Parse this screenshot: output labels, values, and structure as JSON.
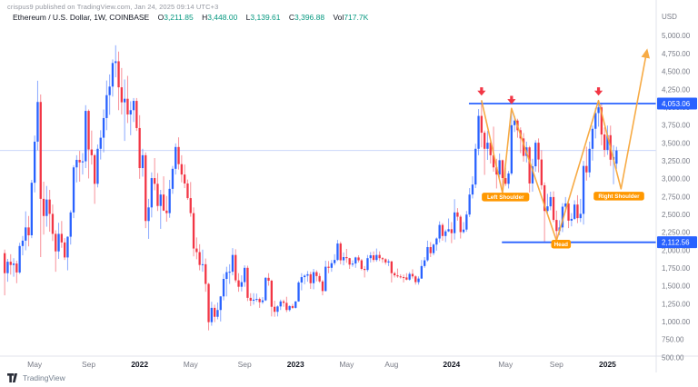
{
  "header": {
    "byline": "crispus9 published on TradingView.com, Jan 24, 2025 09:14 UTC+3"
  },
  "symbol_bar": {
    "title": "Ethereum / U.S. Dollar, 1W, COINBASE",
    "fields": [
      {
        "k": "O",
        "v": "3,211.85"
      },
      {
        "k": "H",
        "v": "3,448.00"
      },
      {
        "k": "L",
        "v": "3,139.61"
      },
      {
        "k": "C",
        "v": "3,396.88"
      },
      {
        "k": "Vol",
        "v": "717.7K"
      }
    ]
  },
  "axis": {
    "currency": "USD",
    "price_ticks": [
      5000,
      4750,
      4500,
      4250,
      4000,
      3750,
      3500,
      3250,
      3000,
      2750,
      2500,
      2250,
      2000,
      1750,
      1500,
      1250,
      1000,
      750,
      500
    ],
    "time_labels": [
      {
        "label": "May",
        "i": 10,
        "bold": false
      },
      {
        "label": "Sep",
        "i": 28,
        "bold": false
      },
      {
        "label": "2022",
        "i": 45,
        "bold": true
      },
      {
        "label": "May",
        "i": 62,
        "bold": false
      },
      {
        "label": "Sep",
        "i": 80,
        "bold": false
      },
      {
        "label": "2023",
        "i": 97,
        "bold": true
      },
      {
        "label": "May",
        "i": 114,
        "bold": false
      },
      {
        "label": "Aug",
        "i": 129,
        "bold": false
      },
      {
        "label": "2024",
        "i": 149,
        "bold": true
      },
      {
        "label": "May",
        "i": 167,
        "bold": false
      },
      {
        "label": "Sep",
        "i": 184,
        "bold": false
      },
      {
        "label": "2025",
        "i": 201,
        "bold": true
      }
    ]
  },
  "footer": {
    "logo_text": "TradingView"
  },
  "colors": {
    "up": "#2962ff",
    "down": "#f23645",
    "wick_up": "rgba(41,98,255,0.55)",
    "wick_down": "rgba(242,54,69,0.55)",
    "drawn_line_blue": "#2962ff",
    "axis_badge_blue": "#2962ff",
    "orange": "#f7a73c",
    "badge_orange": "#ff9800",
    "arrow_red": "#f23645",
    "current_price_line": "#ccd7fa",
    "axis_text": "#787b86",
    "axis_border": "#e0e3eb",
    "year_text": "#131722"
  },
  "chart_data": {
    "type": "candlestick",
    "title": "Ethereum / U.S. Dollar",
    "interval": "1W",
    "exchange": "COINBASE",
    "ylim": [
      520,
      5120
    ],
    "grid": false,
    "current_price": 3396.88,
    "candles": [
      [
        1960,
        2010,
        1370,
        1680
      ],
      [
        1680,
        1880,
        1560,
        1840
      ],
      [
        1840,
        1945,
        1660,
        1795
      ],
      [
        1795,
        1890,
        1630,
        1815
      ],
      [
        1815,
        1855,
        1540,
        1690
      ],
      [
        1690,
        2105,
        1670,
        2060
      ],
      [
        2060,
        2200,
        1930,
        2135
      ],
      [
        2135,
        2545,
        2000,
        2320
      ],
      [
        2320,
        2480,
        2055,
        2210
      ],
      [
        2210,
        2985,
        2170,
        2945
      ],
      [
        2945,
        3605,
        2810,
        3520
      ],
      [
        3520,
        4372,
        3400,
        4075
      ],
      [
        4075,
        4180,
        1905,
        2720
      ],
      [
        2720,
        2960,
        2220,
        2480
      ],
      [
        2480,
        2900,
        2330,
        2710
      ],
      [
        2710,
        2845,
        2260,
        2510
      ],
      [
        2510,
        2640,
        2130,
        2230
      ],
      [
        2230,
        2280,
        1700,
        1985
      ],
      [
        1985,
        2385,
        1880,
        2230
      ],
      [
        2230,
        2410,
        2035,
        2110
      ],
      [
        2110,
        2170,
        1865,
        1900
      ],
      [
        1900,
        2195,
        1720,
        2190
      ],
      [
        2190,
        2560,
        2080,
        2530
      ],
      [
        2530,
        3190,
        2450,
        3160
      ],
      [
        3160,
        3330,
        2950,
        3265
      ],
      [
        3265,
        3390,
        2960,
        3230
      ],
      [
        3230,
        3360,
        3060,
        3245
      ],
      [
        3245,
        4030,
        3150,
        3950
      ],
      [
        3950,
        3970,
        3005,
        3410
      ],
      [
        3410,
        3675,
        3200,
        3330
      ],
      [
        3330,
        3350,
        2650,
        2930
      ],
      [
        2930,
        3480,
        2880,
        3420
      ],
      [
        3420,
        3680,
        3270,
        3575
      ],
      [
        3575,
        3970,
        3370,
        3850
      ],
      [
        3850,
        4375,
        3680,
        4170
      ],
      [
        4170,
        4460,
        3895,
        4290
      ],
      [
        4290,
        4670,
        4150,
        4620
      ],
      [
        4620,
        4868,
        4420,
        4644
      ],
      [
        4644,
        4780,
        3960,
        4280
      ],
      [
        4280,
        4550,
        3900,
        4070
      ],
      [
        4070,
        4390,
        3530,
        4120
      ],
      [
        4120,
        4440,
        3780,
        3900
      ],
      [
        3900,
        4085,
        3610,
        3960
      ],
      [
        3960,
        4130,
        3795,
        4090
      ],
      [
        4090,
        4130,
        3670,
        3710
      ],
      [
        3710,
        3890,
        3000,
        3150
      ],
      [
        3150,
        3420,
        3030,
        3330
      ],
      [
        3330,
        3370,
        2310,
        2410
      ],
      [
        2410,
        2720,
        2160,
        2600
      ],
      [
        2600,
        3090,
        2460,
        3010
      ],
      [
        3010,
        3290,
        2840,
        2930
      ],
      [
        2930,
        3080,
        2550,
        2620
      ],
      [
        2620,
        2845,
        2300,
        2780
      ],
      [
        2780,
        3035,
        2550,
        2555
      ],
      [
        2555,
        2760,
        2400,
        2520
      ],
      [
        2520,
        2985,
        2455,
        2860
      ],
      [
        2860,
        3180,
        2790,
        3140
      ],
      [
        3140,
        3495,
        3060,
        3445
      ],
      [
        3445,
        3580,
        3130,
        3205
      ],
      [
        3205,
        3330,
        2950,
        3060
      ],
      [
        3060,
        3200,
        2870,
        2935
      ],
      [
        2935,
        2990,
        2705,
        2730
      ],
      [
        2730,
        2955,
        2470,
        2520
      ],
      [
        2520,
        2600,
        1915,
        2025
      ],
      [
        2025,
        2180,
        1875,
        1975
      ],
      [
        1975,
        2085,
        1720,
        1795
      ],
      [
        1795,
        2010,
        1700,
        1805
      ],
      [
        1805,
        1885,
        1420,
        1530
      ],
      [
        1530,
        1545,
        880,
        995
      ],
      [
        995,
        1280,
        945,
        1195
      ],
      [
        1195,
        1240,
        995,
        1070
      ],
      [
        1070,
        1270,
        1035,
        1165
      ],
      [
        1165,
        1360,
        1005,
        1355
      ],
      [
        1355,
        1670,
        1300,
        1600
      ],
      [
        1600,
        1770,
        1355,
        1695
      ],
      [
        1695,
        1805,
        1530,
        1700
      ],
      [
        1700,
        2030,
        1650,
        1935
      ],
      [
        1935,
        2015,
        1550,
        1580
      ],
      [
        1580,
        1680,
        1420,
        1490
      ],
      [
        1490,
        1650,
        1425,
        1555
      ],
      [
        1555,
        1790,
        1490,
        1755
      ],
      [
        1755,
        1785,
        1290,
        1335
      ],
      [
        1335,
        1400,
        1220,
        1295
      ],
      [
        1295,
        1400,
        1240,
        1310
      ],
      [
        1310,
        1395,
        1280,
        1320
      ],
      [
        1320,
        1340,
        1195,
        1275
      ],
      [
        1275,
        1345,
        1250,
        1300
      ],
      [
        1300,
        1625,
        1290,
        1615
      ],
      [
        1615,
        1680,
        1505,
        1575
      ],
      [
        1575,
        1590,
        1075,
        1210
      ],
      [
        1210,
        1295,
        1070,
        1140
      ],
      [
        1140,
        1230,
        1075,
        1215
      ],
      [
        1215,
        1310,
        1165,
        1285
      ],
      [
        1285,
        1310,
        1210,
        1265
      ],
      [
        1265,
        1350,
        1135,
        1165
      ],
      [
        1165,
        1230,
        1145,
        1220
      ],
      [
        1220,
        1250,
        1180,
        1195
      ],
      [
        1195,
        1290,
        1185,
        1285
      ],
      [
        1285,
        1570,
        1280,
        1550
      ],
      [
        1550,
        1680,
        1440,
        1625
      ],
      [
        1625,
        1665,
        1525,
        1645
      ],
      [
        1645,
        1710,
        1560,
        1665
      ],
      [
        1665,
        1700,
        1460,
        1540
      ],
      [
        1540,
        1740,
        1455,
        1695
      ],
      [
        1695,
        1720,
        1565,
        1640
      ],
      [
        1640,
        1680,
        1545,
        1565
      ],
      [
        1565,
        1585,
        1370,
        1430
      ],
      [
        1430,
        1855,
        1425,
        1770
      ],
      [
        1770,
        1850,
        1680,
        1755
      ],
      [
        1755,
        1865,
        1700,
        1820
      ],
      [
        1820,
        1945,
        1790,
        1865
      ],
      [
        1865,
        2145,
        1850,
        2095
      ],
      [
        2095,
        2120,
        1805,
        1860
      ],
      [
        1860,
        1970,
        1790,
        1905
      ],
      [
        1905,
        2020,
        1825,
        1890
      ],
      [
        1890,
        1895,
        1740,
        1800
      ],
      [
        1800,
        1860,
        1770,
        1815
      ],
      [
        1815,
        1910,
        1755,
        1900
      ],
      [
        1900,
        1930,
        1830,
        1860
      ],
      [
        1860,
        1880,
        1720,
        1740
      ],
      [
        1740,
        1780,
        1620,
        1725
      ],
      [
        1725,
        1935,
        1700,
        1890
      ],
      [
        1890,
        1975,
        1830,
        1930
      ],
      [
        1930,
        1985,
        1835,
        1865
      ],
      [
        1865,
        2025,
        1840,
        1935
      ],
      [
        1935,
        1985,
        1850,
        1890
      ],
      [
        1890,
        1905,
        1825,
        1875
      ],
      [
        1875,
        1890,
        1800,
        1830
      ],
      [
        1830,
        1875,
        1780,
        1845
      ],
      [
        1845,
        1850,
        1550,
        1680
      ],
      [
        1680,
        1700,
        1620,
        1650
      ],
      [
        1650,
        1745,
        1615,
        1635
      ],
      [
        1635,
        1665,
        1605,
        1625
      ],
      [
        1625,
        1660,
        1550,
        1620
      ],
      [
        1620,
        1680,
        1580,
        1590
      ],
      [
        1590,
        1695,
        1575,
        1670
      ],
      [
        1670,
        1735,
        1605,
        1635
      ],
      [
        1635,
        1650,
        1520,
        1555
      ],
      [
        1555,
        1635,
        1520,
        1605
      ],
      [
        1605,
        1865,
        1600,
        1780
      ],
      [
        1780,
        1905,
        1755,
        1860
      ],
      [
        1860,
        2135,
        1840,
        2045
      ],
      [
        2045,
        2115,
        1905,
        1960
      ],
      [
        1960,
        2095,
        1930,
        2080
      ],
      [
        2080,
        2180,
        1995,
        2165
      ],
      [
        2165,
        2405,
        2110,
        2355
      ],
      [
        2355,
        2380,
        2135,
        2200
      ],
      [
        2200,
        2290,
        2115,
        2265
      ],
      [
        2265,
        2445,
        2255,
        2295
      ],
      [
        2295,
        2395,
        2100,
        2240
      ],
      [
        2240,
        2715,
        2150,
        2530
      ],
      [
        2530,
        2590,
        2415,
        2470
      ],
      [
        2470,
        2495,
        2165,
        2255
      ],
      [
        2255,
        2395,
        2235,
        2290
      ],
      [
        2290,
        2550,
        2260,
        2500
      ],
      [
        2500,
        2870,
        2465,
        2780
      ],
      [
        2780,
        3035,
        2725,
        2920
      ],
      [
        2920,
        3490,
        2870,
        3420
      ],
      [
        3420,
        3975,
        3330,
        3880
      ],
      [
        3880,
        4093,
        3440,
        3645
      ],
      [
        3645,
        3675,
        3055,
        3420
      ],
      [
        3420,
        3670,
        3265,
        3505
      ],
      [
        3505,
        3540,
        3215,
        3330
      ],
      [
        3330,
        3730,
        3100,
        3160
      ],
      [
        3160,
        3280,
        2865,
        3060
      ],
      [
        3060,
        3355,
        3020,
        3260
      ],
      [
        3260,
        3270,
        2815,
        3010
      ],
      [
        3010,
        3155,
        2900,
        2930
      ],
      [
        2930,
        3110,
        2865,
        3075
      ],
      [
        3075,
        3977,
        3050,
        3750
      ],
      [
        3750,
        3880,
        3655,
        3815
      ],
      [
        3815,
        3840,
        3575,
        3680
      ],
      [
        3680,
        3720,
        3360,
        3565
      ],
      [
        3565,
        3640,
        3240,
        3320
      ],
      [
        3320,
        3520,
        3230,
        3440
      ],
      [
        3440,
        3460,
        2810,
        2935
      ],
      [
        2935,
        3280,
        2820,
        3175
      ],
      [
        3175,
        3540,
        3100,
        3505
      ],
      [
        3505,
        3565,
        3090,
        3270
      ],
      [
        3270,
        3400,
        2850,
        2910
      ],
      [
        2910,
        2950,
        2111,
        2550
      ],
      [
        2550,
        2790,
        2515,
        2615
      ],
      [
        2615,
        2820,
        2560,
        2745
      ],
      [
        2745,
        2825,
        2395,
        2425
      ],
      [
        2425,
        2555,
        2150,
        2270
      ],
      [
        2270,
        2420,
        2210,
        2320
      ],
      [
        2320,
        2660,
        2255,
        2610
      ],
      [
        2610,
        2745,
        2540,
        2655
      ],
      [
        2655,
        2670,
        2310,
        2415
      ],
      [
        2415,
        2520,
        2335,
        2440
      ],
      [
        2440,
        2700,
        2425,
        2640
      ],
      [
        2640,
        2770,
        2380,
        2450
      ],
      [
        2450,
        2720,
        2395,
        2510
      ],
      [
        2510,
        3250,
        2360,
        3180
      ],
      [
        3180,
        3450,
        2975,
        3090
      ],
      [
        3090,
        3520,
        3020,
        3420
      ],
      [
        3420,
        3745,
        3255,
        3700
      ],
      [
        3700,
        3990,
        3565,
        3920
      ],
      [
        3920,
        4090,
        3730,
        4000
      ],
      [
        4000,
        4065,
        3470,
        3620
      ],
      [
        3620,
        3720,
        3305,
        3405
      ],
      [
        3405,
        3745,
        3335,
        3610
      ],
      [
        3610,
        3744,
        3180,
        3267
      ],
      [
        3267,
        3470,
        2924,
        3305
      ],
      [
        3211.85,
        3448,
        3139.61,
        3396.88
      ]
    ],
    "horizontal_lines": [
      {
        "price": 4053.06,
        "label": "4,053.06",
        "from_i": 156
      },
      {
        "price": 2112.56,
        "label": "2,112.56",
        "from_i": 167
      }
    ],
    "pattern_zigzag": {
      "points": [
        {
          "i": 159,
          "p": 4100
        },
        {
          "i": 166,
          "p": 2800
        },
        {
          "i": 169,
          "p": 3985
        },
        {
          "i": 184,
          "p": 2135
        },
        {
          "i": 198,
          "p": 4095
        },
        {
          "i": 205.5,
          "p": 2860
        },
        {
          "i": 214,
          "p": 4760
        }
      ]
    },
    "arrows": [
      {
        "i": 159,
        "p": 4280
      },
      {
        "i": 169,
        "p": 4160
      },
      {
        "i": 198,
        "p": 4280
      }
    ],
    "badges": [
      {
        "label": "Left Shoulder",
        "i": 167,
        "p": 2745,
        "name": "pattern-label-left-shoulder"
      },
      {
        "label": "Head",
        "i": 185.5,
        "p": 2086,
        "name": "pattern-label-head"
      },
      {
        "label": "Right Shoulder",
        "i": 204.8,
        "p": 2758,
        "name": "pattern-label-right-shoulder"
      }
    ]
  }
}
